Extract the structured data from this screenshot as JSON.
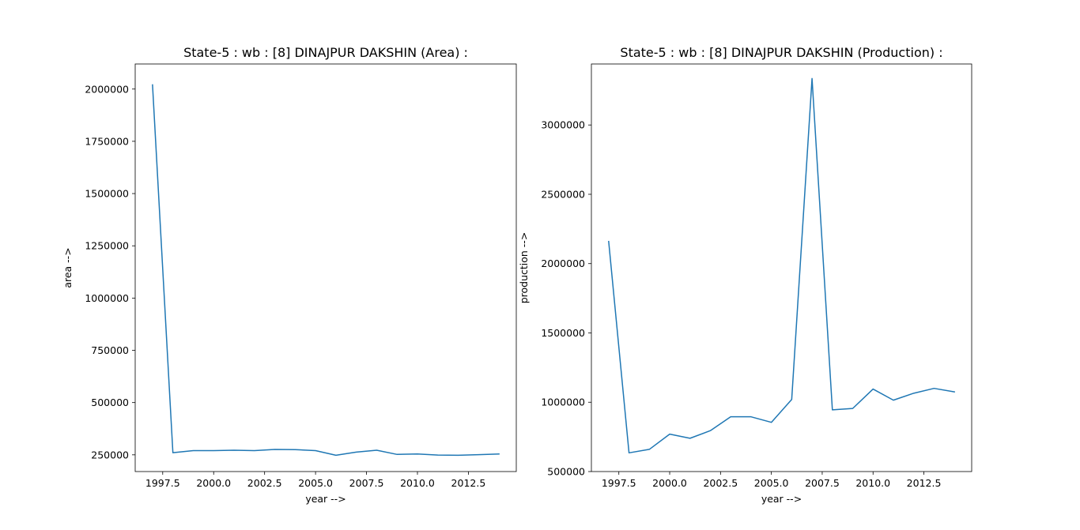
{
  "chart_data": [
    {
      "type": "line",
      "title": "State-5 : wb : [8] DINAJPUR DAKSHIN (Area) :",
      "xlabel": "year -->",
      "ylabel": "area -->",
      "xlim": [
        1996.15,
        2014.85
      ],
      "ylim": [
        170000,
        2120000
      ],
      "x_ticks": [
        1997.5,
        2000.0,
        2002.5,
        2005.0,
        2007.5,
        2010.0,
        2012.5
      ],
      "x_tick_labels": [
        "1997.5",
        "2000.0",
        "2002.5",
        "2005.0",
        "2007.5",
        "2010.0",
        "2012.5"
      ],
      "y_ticks": [
        250000,
        500000,
        750000,
        1000000,
        1250000,
        1500000,
        1750000,
        2000000
      ],
      "y_tick_labels": [
        "250000",
        "500000",
        "750000",
        "1000000",
        "1250000",
        "1500000",
        "1750000",
        "2000000"
      ],
      "grid": false,
      "series": [
        {
          "color": "#1f77b4",
          "x": [
            1997,
            1998,
            1999,
            2000,
            2001,
            2002,
            2003,
            2004,
            2005,
            2006,
            2007,
            2008,
            2009,
            2010,
            2011,
            2012,
            2013,
            2014
          ],
          "y": [
            2020000,
            260000,
            270000,
            270000,
            272000,
            270000,
            276000,
            275000,
            270000,
            248000,
            263000,
            272000,
            252000,
            254000,
            249000,
            248000,
            251000,
            254000
          ]
        }
      ]
    },
    {
      "type": "line",
      "title": "State-5 : wb : [8] DINAJPUR DAKSHIN (Production) :",
      "xlabel": "year -->",
      "ylabel": "production -->",
      "xlim": [
        1996.15,
        2014.85
      ],
      "ylim": [
        500000,
        3440000
      ],
      "x_ticks": [
        1997.5,
        2000.0,
        2002.5,
        2005.0,
        2007.5,
        2010.0,
        2012.5
      ],
      "x_tick_labels": [
        "1997.5",
        "2000.0",
        "2002.5",
        "2005.0",
        "2007.5",
        "2010.0",
        "2012.5"
      ],
      "y_ticks": [
        500000,
        1000000,
        1500000,
        2000000,
        2500000,
        3000000
      ],
      "y_tick_labels": [
        "500000",
        "1000000",
        "1500000",
        "2000000",
        "2500000",
        "3000000"
      ],
      "grid": false,
      "series": [
        {
          "color": "#1f77b4",
          "x": [
            1997,
            1998,
            1999,
            2000,
            2001,
            2002,
            2003,
            2004,
            2005,
            2006,
            2007,
            2008,
            2009,
            2010,
            2011,
            2012,
            2013,
            2014
          ],
          "y": [
            2160000,
            635000,
            660000,
            770000,
            740000,
            795000,
            895000,
            895000,
            855000,
            1020000,
            3335000,
            945000,
            955000,
            1095000,
            1015000,
            1065000,
            1100000,
            1075000
          ]
        }
      ]
    }
  ]
}
